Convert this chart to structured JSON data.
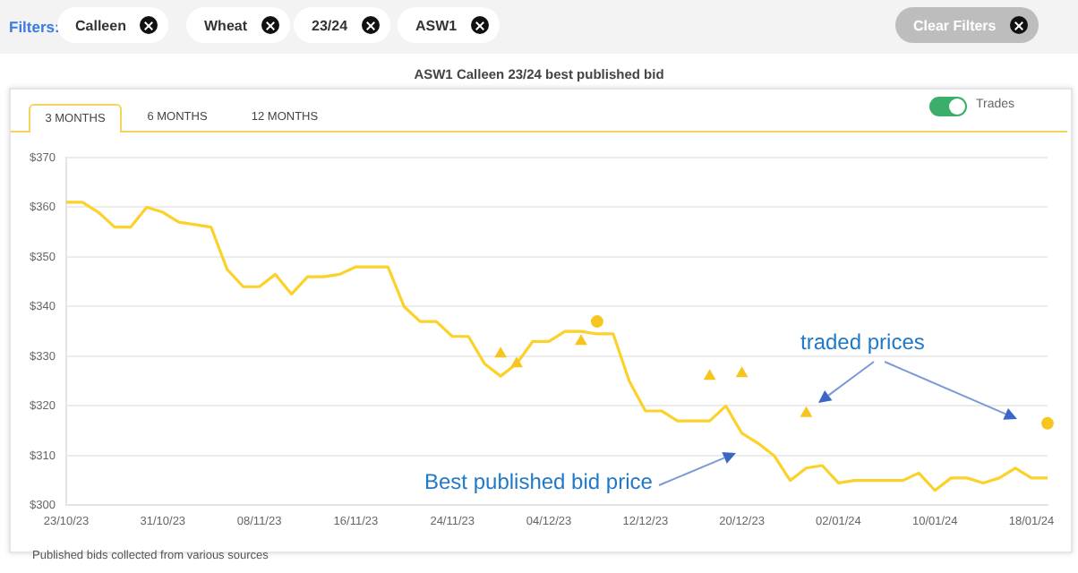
{
  "chart_data": {
    "type": "line",
    "title": "ASW1 Calleen 23/24 best published bid",
    "categories": [
      "23/10/23",
      null,
      null,
      null,
      null,
      null,
      "31/10/23",
      null,
      null,
      null,
      null,
      null,
      "08/11/23",
      null,
      null,
      null,
      null,
      null,
      "16/11/23",
      null,
      null,
      null,
      null,
      null,
      "24/11/23",
      null,
      null,
      null,
      null,
      null,
      "04/12/23",
      null,
      null,
      null,
      null,
      null,
      "12/12/23",
      null,
      null,
      null,
      null,
      null,
      "20/12/23",
      null,
      null,
      null,
      null,
      null,
      "02/01/24",
      null,
      null,
      null,
      null,
      null,
      "10/01/24",
      null,
      null,
      null,
      null,
      null,
      "18/01/24",
      null
    ],
    "series": [
      {
        "color": "#fcd12a",
        "values": [
          361,
          361,
          359,
          356,
          356,
          360,
          359,
          357,
          356.5,
          356,
          347.5,
          344,
          344,
          346.5,
          342.5,
          346,
          346,
          346.5,
          348,
          348,
          348,
          340,
          337,
          337,
          334,
          334,
          328.5,
          326,
          328.5,
          333,
          333,
          335,
          335,
          334.5,
          334.5,
          325,
          319,
          319,
          317,
          317,
          317,
          320,
          314.5,
          312.5,
          310,
          305,
          307.5,
          308,
          304.5,
          305,
          305,
          305,
          305,
          306.5,
          303,
          305.5,
          305.5,
          304.5,
          305.5,
          307.5,
          305.5,
          305.5
        ]
      },
      {
        "type": "scatter",
        "marker": "triangle",
        "color": "#f7c51e",
        "values": [
          null,
          null,
          null,
          null,
          null,
          null,
          null,
          null,
          null,
          null,
          null,
          null,
          null,
          null,
          null,
          null,
          null,
          null,
          null,
          null,
          null,
          null,
          null,
          null,
          null,
          null,
          null,
          330.5,
          328.5,
          null,
          null,
          null,
          333,
          null,
          null,
          null,
          null,
          null,
          null,
          null,
          326,
          null,
          326.5,
          null,
          null,
          null,
          318.5,
          null,
          null,
          null,
          null,
          null,
          null,
          null,
          null,
          null,
          null,
          null,
          null,
          null,
          null,
          null
        ]
      },
      {
        "type": "scatter",
        "marker": "circle",
        "color": "#f7c51e",
        "values": [
          null,
          null,
          null,
          null,
          null,
          null,
          null,
          null,
          null,
          null,
          null,
          null,
          null,
          null,
          null,
          null,
          null,
          null,
          null,
          null,
          null,
          null,
          null,
          null,
          null,
          null,
          null,
          null,
          null,
          null,
          null,
          null,
          null,
          337,
          null,
          null,
          null,
          null,
          null,
          null,
          null,
          null,
          null,
          null,
          null,
          null,
          null,
          null,
          null,
          null,
          null,
          null,
          null,
          null,
          null,
          null,
          null,
          null,
          null,
          null,
          null,
          316.5
        ]
      }
    ],
    "marker": "none",
    "ylim": [
      300,
      370
    ],
    "yticks": [
      {
        "value": 300,
        "label": "$300"
      },
      {
        "value": 310,
        "label": "$310"
      },
      {
        "value": 320,
        "label": "$320"
      },
      {
        "value": 330,
        "label": "$330"
      },
      {
        "value": 340,
        "label": "$340"
      },
      {
        "value": 350,
        "label": "$350"
      },
      {
        "value": 360,
        "label": "$360"
      },
      {
        "value": 370,
        "label": "$370"
      }
    ],
    "grid": "y",
    "legend": false,
    "annotations": [
      "Filters:",
      "Calleen",
      "Wheat",
      "23/24",
      "ASW1",
      "Clear Filters",
      "3 MONTHS",
      "6 MONTHS",
      "12 MONTHS",
      "Trades",
      "traded prices",
      "Best published bid price",
      "Published bids collected from various sources"
    ]
  }
}
